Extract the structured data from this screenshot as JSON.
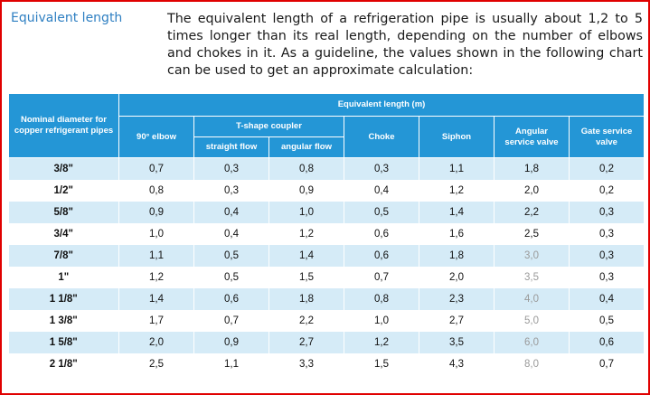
{
  "title": "Equivalent length",
  "intro": "The equivalent length of a refrigeration pipe is usually about 1,2 to 5 times longer than its real length, depending on the number of elbows and chokes in it. As a guideline, the values shown in the following chart can be used to get an approximate calculation:",
  "table": {
    "headers": {
      "diameter": "Nominal diameter for copper refrigerant pipes",
      "equivalent": "Equivalent length (m)",
      "elbow": "90° elbow",
      "tshape": "T-shape coupler",
      "straight": "straight flow",
      "angular": "angular flow",
      "choke": "Choke",
      "siphon": "Siphon",
      "angular_valve": "Angular service valve",
      "gate_valve": "Gate service valve"
    },
    "rows": [
      {
        "d": "3/8\"",
        "elbow": "0,7",
        "straight": "0,3",
        "angular": "0,8",
        "choke": "0,3",
        "siphon": "1,1",
        "av": "1,8",
        "gv": "0,2"
      },
      {
        "d": "1/2\"",
        "elbow": "0,8",
        "straight": "0,3",
        "angular": "0,9",
        "choke": "0,4",
        "siphon": "1,2",
        "av": "2,0",
        "gv": "0,2"
      },
      {
        "d": "5/8\"",
        "elbow": "0,9",
        "straight": "0,4",
        "angular": "1,0",
        "choke": "0,5",
        "siphon": "1,4",
        "av": "2,2",
        "gv": "0,3"
      },
      {
        "d": "3/4\"",
        "elbow": "1,0",
        "straight": "0,4",
        "angular": "1,2",
        "choke": "0,6",
        "siphon": "1,6",
        "av": "2,5",
        "gv": "0,3"
      },
      {
        "d": "7/8\"",
        "elbow": "1,1",
        "straight": "0,5",
        "angular": "1,4",
        "choke": "0,6",
        "siphon": "1,8",
        "av": "3,0",
        "gv": "0,3"
      },
      {
        "d": "1\"",
        "elbow": "1,2",
        "straight": "0,5",
        "angular": "1,5",
        "choke": "0,7",
        "siphon": "2,0",
        "av": "3,5",
        "gv": "0,3"
      },
      {
        "d": "1 1/8\"",
        "elbow": "1,4",
        "straight": "0,6",
        "angular": "1,8",
        "choke": "0,8",
        "siphon": "2,3",
        "av": "4,0",
        "gv": "0,4"
      },
      {
        "d": "1 3/8\"",
        "elbow": "1,7",
        "straight": "0,7",
        "angular": "2,2",
        "choke": "1,0",
        "siphon": "2,7",
        "av": "5,0",
        "gv": "0,5"
      },
      {
        "d": "1 5/8\"",
        "elbow": "2,0",
        "straight": "0,9",
        "angular": "2,7",
        "choke": "1,2",
        "siphon": "3,5",
        "av": "6,0",
        "gv": "0,6"
      },
      {
        "d": "2 1/8\"",
        "elbow": "2,5",
        "straight": "1,1",
        "angular": "3,3",
        "choke": "1,5",
        "siphon": "4,3",
        "av": "8,0",
        "gv": "0,7"
      }
    ]
  },
  "colors": {
    "title": "#2e7fc2",
    "header_bg": "#2496d6",
    "stripe": "#d5ebf7",
    "border": "#e00000",
    "muted_value": "#9a9a9a"
  }
}
